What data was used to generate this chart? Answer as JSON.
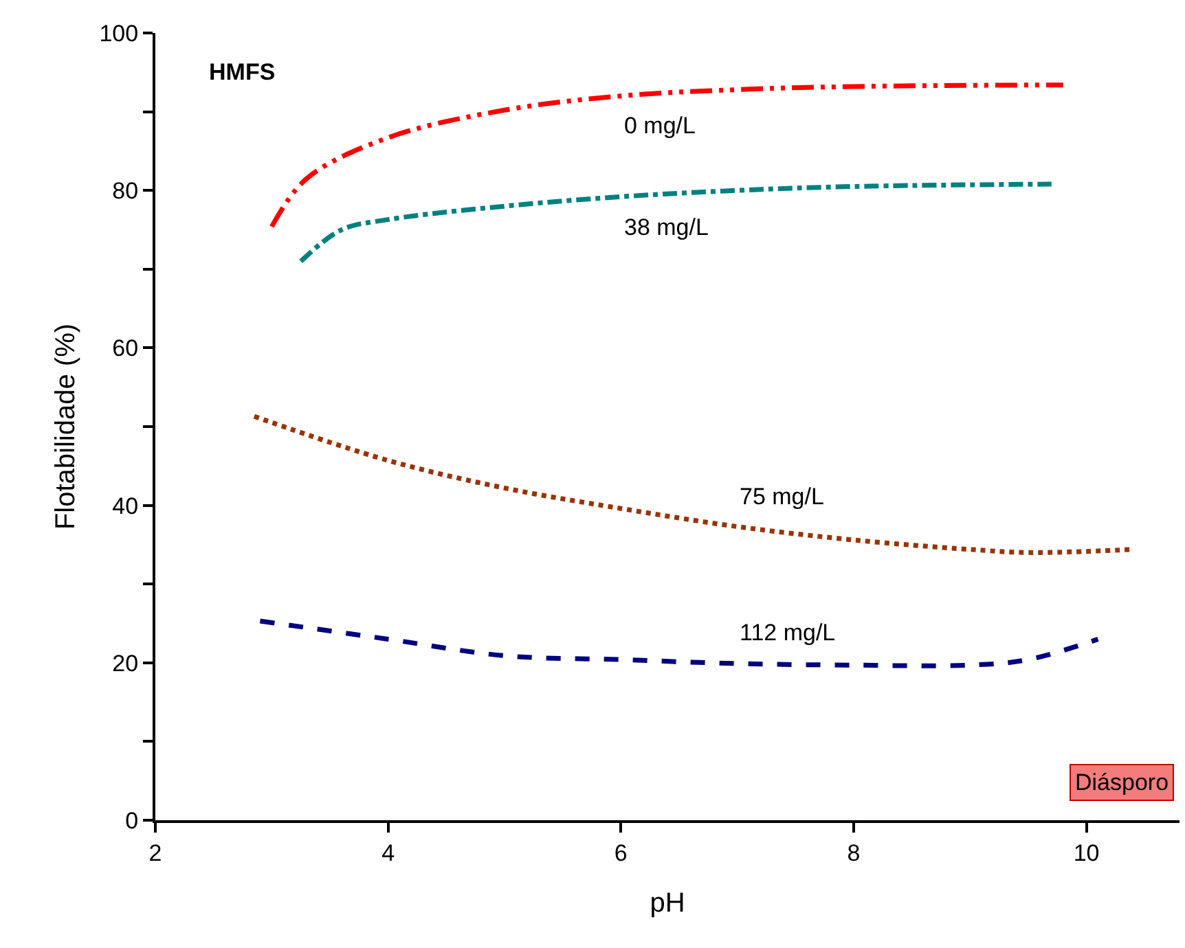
{
  "chart_data": {
    "type": "line",
    "xlabel": "pH",
    "ylabel": "Flotabilidade (%)",
    "xlim": [
      2,
      10.8
    ],
    "xticks": [
      2,
      4,
      6,
      8,
      10
    ],
    "ylim": [
      0,
      100
    ],
    "yticks": [
      0,
      {
        "value": 10,
        "label": null
      },
      20,
      {
        "value": 30,
        "label": null
      },
      40,
      {
        "value": 50,
        "label": null
      },
      60,
      {
        "value": 70,
        "label": null
      },
      80,
      {
        "value": 90,
        "label": null
      },
      100
    ],
    "grid": false,
    "legend": false,
    "marker": "none",
    "series": [
      {
        "name": "0 mg/L",
        "color": "#ff0000",
        "line_style": "dashdotdot",
        "x": [
          3.0,
          3.3,
          4,
          5,
          6,
          7,
          8,
          9.8
        ],
        "values": [
          75.4,
          81.5,
          86.7,
          90.2,
          92,
          92.8,
          93.2,
          93.4
        ]
      },
      {
        "name": "38 mg/L",
        "color": "#008080",
        "line_style": "dashdot",
        "x": [
          3.25,
          3.6,
          4,
          5,
          6,
          7,
          8,
          9.7
        ],
        "values": [
          71,
          75,
          76.3,
          78,
          79.2,
          80,
          80.5,
          80.8
        ]
      },
      {
        "name": "75 mg/L",
        "color": "#993300",
        "line_style": "dotted",
        "x": [
          2.85,
          4,
          5,
          6,
          7,
          8,
          9,
          9.5,
          10.4
        ],
        "values": [
          51.3,
          45.7,
          42.2,
          39.6,
          37.3,
          35.6,
          34.4,
          34,
          34.4
        ]
      },
      {
        "name": "112 mg/L",
        "color": "#000080",
        "line_style": "dashed",
        "x": [
          2.9,
          4,
          5,
          6,
          7,
          8,
          9,
          9.5,
          10.1
        ],
        "values": [
          25.3,
          23,
          20.9,
          20.4,
          19.9,
          19.7,
          19.7,
          20.4,
          23
        ]
      }
    ],
    "annotations": [
      "HMFS",
      "Diásporo"
    ]
  }
}
